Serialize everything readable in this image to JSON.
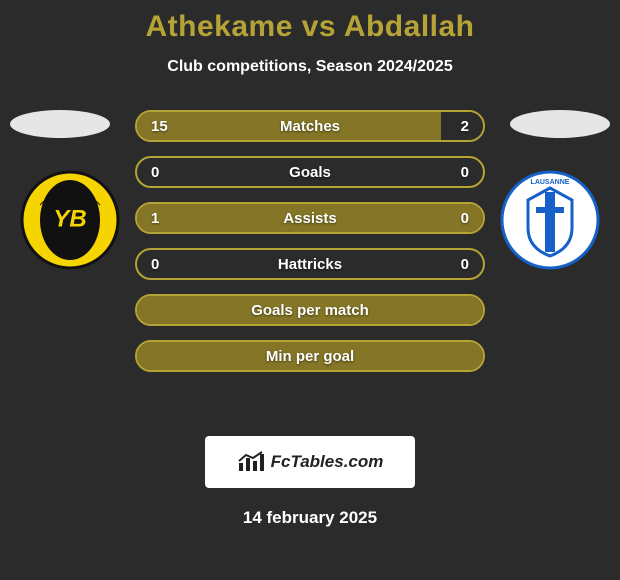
{
  "title_text": "Athekame vs Abdallah",
  "title_color": "#b6a336",
  "subtitle_text": "Club competitions, Season 2024/2025",
  "background_color": "#2b2b2b",
  "text_color": "#ffffff",
  "halo_color": "#e6e6e6",
  "player_left": {
    "name": "Athekame",
    "crest_bg": "#f6d400",
    "crest_inner": "#111111",
    "crest_accent": "#ffffff"
  },
  "player_right": {
    "name": "Abdallah",
    "crest_bg": "#ffffff",
    "crest_inner": "#1660c9",
    "crest_accent": "#1660c9"
  },
  "bars": [
    {
      "label": "Matches",
      "left": "15",
      "right": "2",
      "left_pct": 88,
      "right_pct": 12,
      "border": "#b6a336",
      "fill_left": "#847626",
      "fill_right": "#2b2b2b",
      "show_values": true
    },
    {
      "label": "Goals",
      "left": "0",
      "right": "0",
      "left_pct": 0,
      "right_pct": 0,
      "border": "#b6a336",
      "fill_left": "#2b2b2b",
      "fill_right": "#2b2b2b",
      "show_values": true
    },
    {
      "label": "Assists",
      "left": "1",
      "right": "0",
      "left_pct": 100,
      "right_pct": 0,
      "border": "#b6a336",
      "fill_left": "#847626",
      "fill_right": "#2b2b2b",
      "show_values": true
    },
    {
      "label": "Hattricks",
      "left": "0",
      "right": "0",
      "left_pct": 0,
      "right_pct": 0,
      "border": "#b6a336",
      "fill_left": "#2b2b2b",
      "fill_right": "#2b2b2b",
      "show_values": true
    },
    {
      "label": "Goals per match",
      "left": "",
      "right": "",
      "left_pct": 100,
      "right_pct": 0,
      "border": "#b6a336",
      "fill_left": "#847626",
      "fill_right": "#2b2b2b",
      "show_values": false
    },
    {
      "label": "Min per goal",
      "left": "",
      "right": "",
      "left_pct": 100,
      "right_pct": 0,
      "border": "#b6a336",
      "fill_left": "#847626",
      "fill_right": "#2b2b2b",
      "show_values": false
    }
  ],
  "watermark_text": "FcTables.com",
  "date_text": "14 february 2025"
}
